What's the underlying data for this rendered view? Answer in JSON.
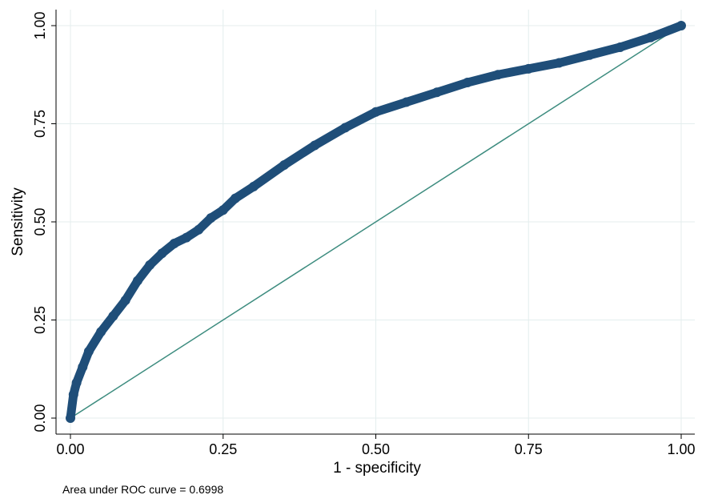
{
  "chart_data": {
    "type": "line",
    "xlabel": "1 - specificity",
    "ylabel": "Sensitivity",
    "xlim": [
      0,
      1
    ],
    "ylim": [
      0,
      1
    ],
    "x_ticks": [
      "0.00",
      "0.25",
      "0.50",
      "0.75",
      "1.00"
    ],
    "y_ticks": [
      "0.00",
      "0.25",
      "0.50",
      "0.75",
      "1.00"
    ],
    "grid": true,
    "legend": "none",
    "note": "Area under ROC curve = 0.6998",
    "colors": {
      "roc": "#1f4e79",
      "reference": "#3d8c7f",
      "grid": "#e4eeee"
    },
    "series": [
      {
        "x": [
          0,
          0.005,
          0.01,
          0.02,
          0.03,
          0.05,
          0.07,
          0.09,
          0.11,
          0.13,
          0.15,
          0.17,
          0.19,
          0.21,
          0.23,
          0.25,
          0.27,
          0.3,
          0.35,
          0.4,
          0.45,
          0.5,
          0.55,
          0.6,
          0.65,
          0.7,
          0.75,
          0.8,
          0.85,
          0.9,
          0.95,
          1
        ],
        "y": [
          0,
          0.06,
          0.09,
          0.13,
          0.17,
          0.22,
          0.26,
          0.3,
          0.35,
          0.39,
          0.42,
          0.445,
          0.46,
          0.48,
          0.51,
          0.53,
          0.56,
          0.59,
          0.645,
          0.695,
          0.74,
          0.78,
          0.805,
          0.83,
          0.855,
          0.875,
          0.89,
          0.905,
          0.925,
          0.945,
          0.97,
          1
        ]
      },
      {
        "x": [
          0,
          1
        ],
        "y": [
          0,
          1
        ]
      }
    ]
  }
}
